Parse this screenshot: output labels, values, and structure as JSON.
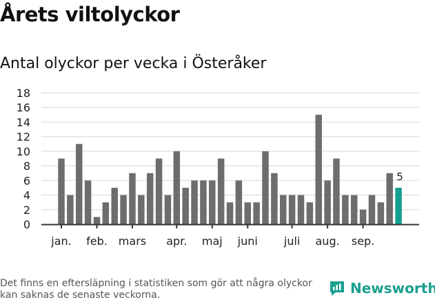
{
  "title": "Årets viltolyckor",
  "note": "Det finns en eftersläpning i statistiken som gör att några olyckor kan saknas de senaste veckorna.",
  "logo": "Newsworthy",
  "colors": {
    "bar": "#6d6d70",
    "highlight": "#14a090",
    "grid": "#e3e3e3",
    "axis": "#333333"
  },
  "chart_data": {
    "type": "bar",
    "title": "Antal olyckor per vecka i Österåker",
    "xlabel": "",
    "ylabel": "",
    "ylim": [
      0,
      18
    ],
    "yticks": [
      0,
      2,
      4,
      6,
      8,
      10,
      12,
      14,
      16,
      18
    ],
    "grid": true,
    "values": [
      9,
      4,
      11,
      6,
      1,
      3,
      5,
      4,
      7,
      4,
      7,
      9,
      4,
      10,
      5,
      6,
      6,
      6,
      9,
      3,
      6,
      3,
      3,
      10,
      7,
      4,
      4,
      4,
      3,
      15,
      6,
      9,
      4,
      4,
      2,
      4,
      3,
      7,
      5
    ],
    "highlight_last": true,
    "last_label": "5",
    "month_ticks": [
      {
        "label": "jan.",
        "week": 0
      },
      {
        "label": "feb.",
        "week": 4
      },
      {
        "label": "mars",
        "week": 8
      },
      {
        "label": "apr.",
        "week": 13
      },
      {
        "label": "maj",
        "week": 17
      },
      {
        "label": "juni",
        "week": 21
      },
      {
        "label": "juli",
        "week": 26
      },
      {
        "label": "aug.",
        "week": 30
      },
      {
        "label": "sep.",
        "week": 34
      }
    ]
  }
}
